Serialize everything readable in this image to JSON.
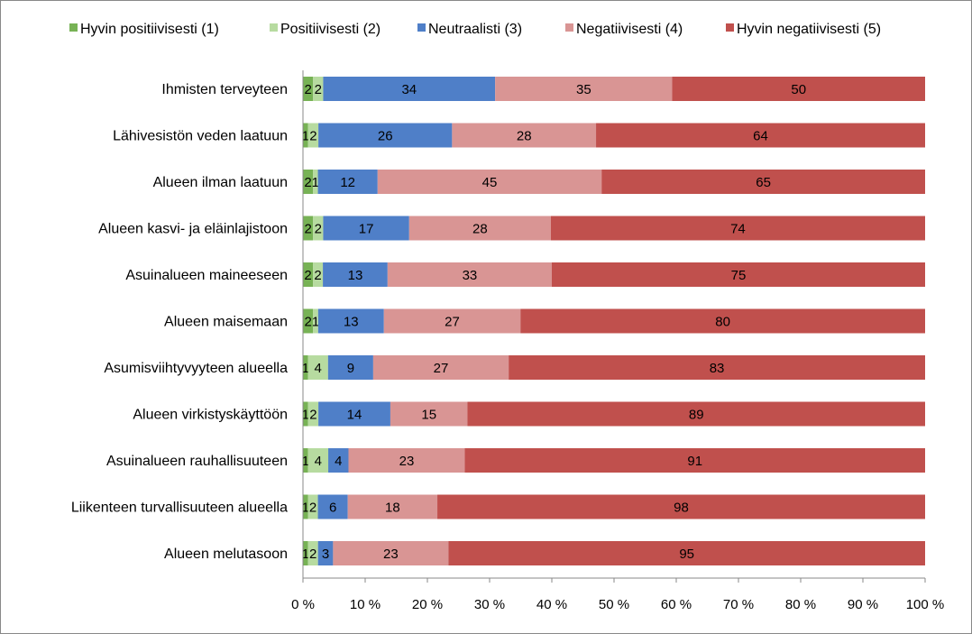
{
  "chart_data": {
    "type": "bar",
    "orientation": "horizontal",
    "stacked": "percent",
    "legend_position": "top",
    "grid": false,
    "xlim": [
      0,
      100
    ],
    "x_ticks": [
      "0 %",
      "10 %",
      "20 %",
      "30 %",
      "40 %",
      "50 %",
      "60 %",
      "70 %",
      "80 %",
      "90 %",
      "100 %"
    ],
    "categories": [
      "Ihmisten terveyteen",
      "Lähivesistön veden laatuun",
      "Alueen ilman laatuun",
      "Alueen kasvi- ja eläinlajistoon",
      "Asuinalueen maineeseen",
      "Alueen maisemaan",
      "Asumisviihtyvyyteen alueella",
      "Alueen virkistyskäyttöön",
      "Asuinalueen rauhallisuuteen",
      "Liikenteen turvallisuuteen alueella",
      "Alueen melutasoon"
    ],
    "series": [
      {
        "name": "Hyvin positiivisesti (1)",
        "color": "#77b255",
        "values": [
          2,
          1,
          2,
          2,
          2,
          2,
          1,
          1,
          1,
          1,
          1
        ]
      },
      {
        "name": "Positiivisesti (2)",
        "color": "#b7dba0",
        "values": [
          2,
          2,
          1,
          2,
          2,
          1,
          4,
          2,
          4,
          2,
          2
        ]
      },
      {
        "name": "Neutraalisti (3)",
        "color": "#4f7fc8",
        "values": [
          34,
          26,
          12,
          17,
          13,
          13,
          9,
          14,
          4,
          6,
          3
        ]
      },
      {
        "name": "Negatiivisesti (4)",
        "color": "#d99594",
        "values": [
          35,
          28,
          45,
          28,
          33,
          27,
          27,
          15,
          23,
          18,
          23
        ]
      },
      {
        "name": "Hyvin negatiivisesti (5)",
        "color": "#c0504d",
        "values": [
          50,
          64,
          65,
          74,
          75,
          80,
          83,
          89,
          91,
          98,
          95
        ]
      }
    ]
  }
}
